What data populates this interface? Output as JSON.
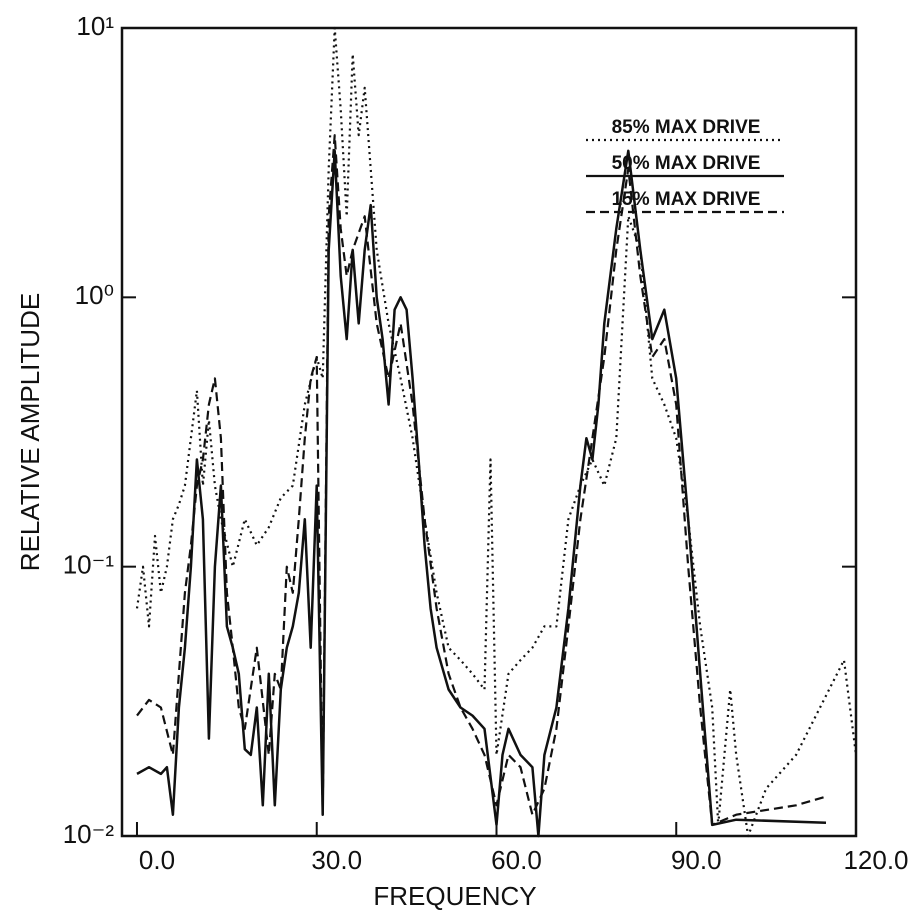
{
  "chart_data": {
    "type": "line",
    "xlabel": "FREQUENCY",
    "ylabel": "RELATIVE AMPLITUDE",
    "log_y": true,
    "legend": "upper right",
    "xlim": [
      -2.5,
      120
    ],
    "ylim": [
      0.01,
      10
    ],
    "xticks": [
      {
        "value": 0,
        "label": "0.0"
      },
      {
        "value": 30,
        "label": "30.0"
      },
      {
        "value": 60,
        "label": "60.0"
      },
      {
        "value": 90,
        "label": "90.0"
      },
      {
        "value": 120,
        "label": "120.0"
      }
    ],
    "yticks": [
      {
        "value": 0.01,
        "label": "10⁻²"
      },
      {
        "value": 0.1,
        "label": "10⁻¹"
      },
      {
        "value": 1,
        "label": "10⁰"
      },
      {
        "value": 10,
        "label": "10¹"
      }
    ],
    "series": [
      {
        "name": "85% MAX DRIVE",
        "color": "#111111",
        "dash": "dotted",
        "x": [
          0,
          1,
          2,
          3,
          4,
          5,
          6,
          7,
          8,
          9,
          10,
          11,
          12,
          13,
          14,
          16,
          18,
          20,
          22,
          24,
          26,
          28,
          30,
          31,
          32,
          33,
          34,
          35,
          36,
          37,
          38,
          39,
          40,
          42,
          44,
          46,
          48,
          50,
          52,
          54,
          56,
          58,
          59,
          60,
          62,
          64,
          66,
          68,
          70,
          72,
          74,
          76,
          78,
          80,
          82,
          84,
          86,
          88,
          90,
          92,
          94,
          96,
          97,
          99,
          100,
          102,
          105,
          110,
          118,
          120
        ],
        "values": [
          0.07,
          0.1,
          0.06,
          0.13,
          0.08,
          0.1,
          0.15,
          0.17,
          0.2,
          0.3,
          0.45,
          0.2,
          0.35,
          0.2,
          0.15,
          0.1,
          0.15,
          0.12,
          0.14,
          0.18,
          0.2,
          0.4,
          0.6,
          0.5,
          3,
          10,
          5,
          2,
          8,
          4,
          6,
          3,
          1.5,
          0.8,
          0.5,
          0.3,
          0.15,
          0.08,
          0.05,
          0.045,
          0.04,
          0.035,
          0.25,
          0.02,
          0.04,
          0.045,
          0.05,
          0.06,
          0.06,
          0.15,
          0.2,
          0.25,
          0.2,
          0.3,
          2,
          1.5,
          0.5,
          0.4,
          0.3,
          0.15,
          0.06,
          0.03,
          0.011,
          0.035,
          0.02,
          0.01,
          0.015,
          0.02,
          0.045,
          0.02
        ]
      },
      {
        "name": "50% MAX DRIVE",
        "color": "#111111",
        "dash": "solid",
        "x": [
          0,
          2,
          4,
          5,
          6,
          7,
          8,
          9,
          10,
          11,
          12,
          13,
          14,
          15,
          16,
          17,
          18,
          19,
          20,
          21,
          22,
          23,
          24,
          25,
          26,
          27,
          28,
          29,
          30,
          31,
          32,
          33,
          34,
          35,
          36,
          37,
          38,
          39,
          40,
          41,
          42,
          43,
          44,
          45,
          46,
          47,
          48,
          49,
          50,
          52,
          54,
          56,
          58,
          60,
          61,
          62,
          64,
          66,
          67,
          68,
          70,
          72,
          74,
          75,
          76,
          77,
          78,
          80,
          82,
          84,
          86,
          88,
          90,
          92,
          94,
          96,
          100,
          115
        ],
        "values": [
          0.017,
          0.018,
          0.017,
          0.018,
          0.012,
          0.03,
          0.05,
          0.1,
          0.25,
          0.15,
          0.023,
          0.1,
          0.2,
          0.06,
          0.05,
          0.04,
          0.021,
          0.02,
          0.03,
          0.013,
          0.04,
          0.013,
          0.035,
          0.05,
          0.06,
          0.08,
          0.15,
          0.05,
          0.2,
          0.012,
          1.5,
          3.5,
          1.2,
          0.7,
          1.5,
          0.8,
          1.5,
          2.2,
          1,
          0.7,
          0.4,
          0.9,
          1,
          0.9,
          0.5,
          0.25,
          0.12,
          0.07,
          0.05,
          0.035,
          0.03,
          0.028,
          0.025,
          0.011,
          0.02,
          0.025,
          0.02,
          0.018,
          0.01,
          0.02,
          0.03,
          0.07,
          0.2,
          0.3,
          0.25,
          0.4,
          0.8,
          1.8,
          3.5,
          1.5,
          0.7,
          0.9,
          0.5,
          0.15,
          0.04,
          0.011,
          0.0115,
          0.0112
        ]
      },
      {
        "name": "15% MAX DRIVE",
        "color": "#111111",
        "dash": "dashed",
        "x": [
          0,
          2,
          4,
          6,
          7,
          8,
          9,
          10,
          11,
          12,
          13,
          14,
          15,
          16,
          17,
          18,
          20,
          22,
          23,
          24,
          25,
          26,
          27,
          28,
          29,
          30,
          31,
          32,
          33,
          34,
          35,
          36,
          38,
          40,
          42,
          44,
          46,
          48,
          50,
          52,
          54,
          56,
          58,
          60,
          62,
          64,
          66,
          68,
          70,
          72,
          74,
          76,
          78,
          80,
          82,
          84,
          86,
          88,
          90,
          92,
          94,
          96,
          100,
          110,
          115
        ],
        "values": [
          0.028,
          0.032,
          0.03,
          0.02,
          0.04,
          0.08,
          0.12,
          0.2,
          0.25,
          0.4,
          0.5,
          0.3,
          0.08,
          0.05,
          0.03,
          0.025,
          0.05,
          0.02,
          0.04,
          0.035,
          0.1,
          0.08,
          0.15,
          0.3,
          0.5,
          0.6,
          0.012,
          2,
          4,
          1.8,
          1.2,
          1.5,
          2,
          0.8,
          0.5,
          0.8,
          0.4,
          0.15,
          0.07,
          0.04,
          0.03,
          0.025,
          0.02,
          0.013,
          0.02,
          0.018,
          0.012,
          0.015,
          0.025,
          0.06,
          0.15,
          0.3,
          0.6,
          1.5,
          3,
          1.2,
          0.6,
          0.7,
          0.4,
          0.1,
          0.03,
          0.011,
          0.012,
          0.013,
          0.014
        ]
      }
    ]
  }
}
